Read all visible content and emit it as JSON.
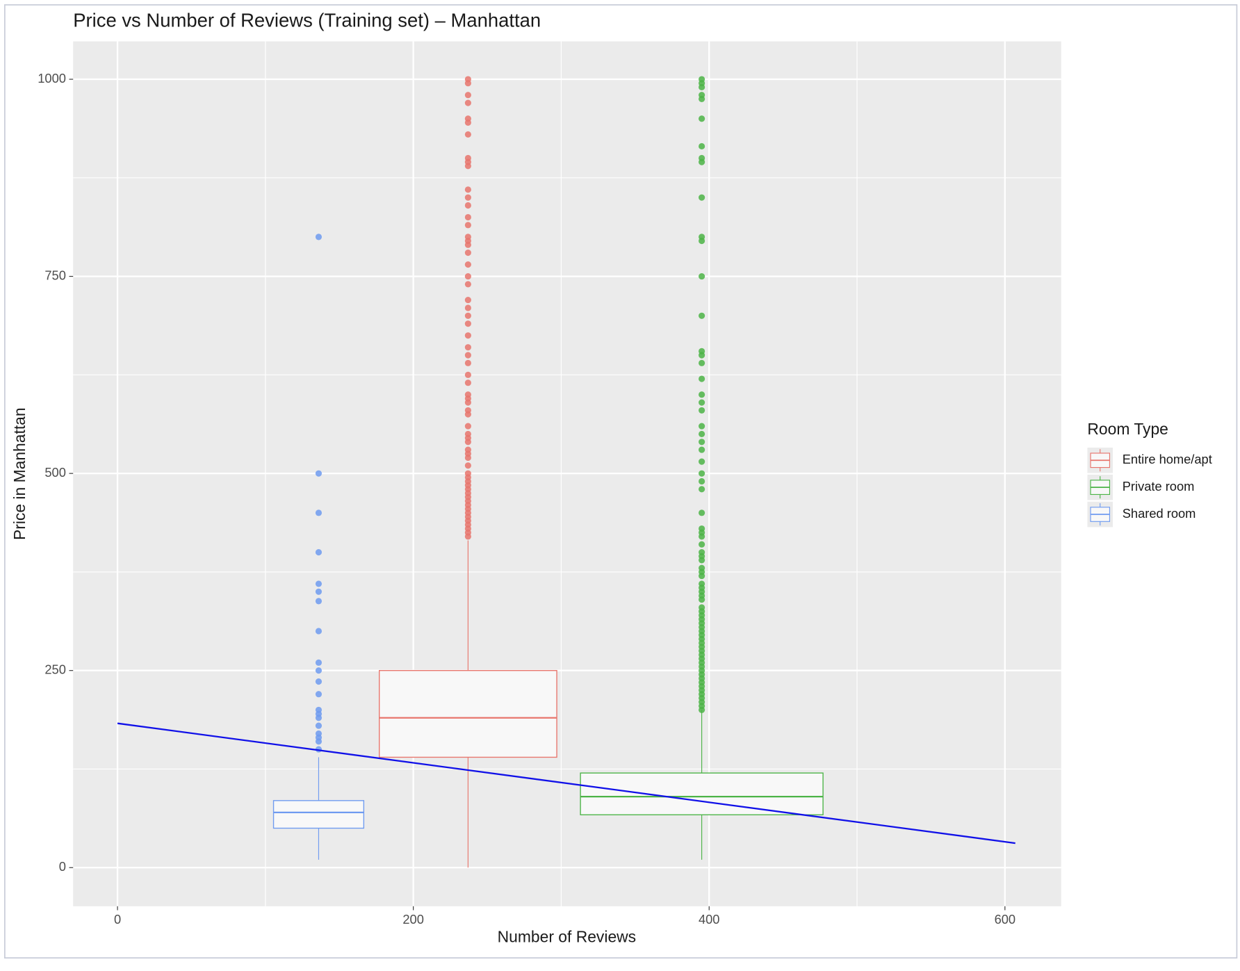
{
  "chart_data": {
    "type": "box",
    "title": "Price vs Number of Reviews (Training set) – Manhattan",
    "x_label": "Number of Reviews",
    "y_label": "Price in Manhattan",
    "legend_title": "Room Type",
    "legend_position": "right",
    "grid": true,
    "xlim": [
      -30,
      638
    ],
    "xticks": [
      0,
      200,
      400,
      600
    ],
    "ylim": [
      -49,
      1048
    ],
    "yticks": [
      0,
      250,
      500,
      750,
      1000
    ],
    "series": [
      {
        "name": "Entire home/apt",
        "color": "#e8766d",
        "x": 237,
        "width": 120,
        "q1": 140,
        "median": 190,
        "q3": 250,
        "whisker_low": 0,
        "whisker_high": 415,
        "outliers": [
          1000,
          995,
          980,
          970,
          950,
          945,
          930,
          900,
          895,
          890,
          860,
          850,
          840,
          825,
          815,
          800,
          795,
          790,
          780,
          765,
          750,
          740,
          720,
          710,
          700,
          690,
          675,
          660,
          650,
          640,
          625,
          615,
          600,
          595,
          590,
          580,
          575,
          560,
          550,
          545,
          540,
          530,
          525,
          520,
          510,
          500,
          495,
          490,
          485,
          480,
          475,
          470,
          465,
          460,
          455,
          450,
          445,
          440,
          435,
          430,
          425,
          420
        ]
      },
      {
        "name": "Private room",
        "color": "#4cb447",
        "x": 395,
        "width": 164,
        "q1": 67,
        "median": 90,
        "q3": 120,
        "whisker_low": 10,
        "whisker_high": 200,
        "outliers": [
          1000,
          995,
          990,
          980,
          975,
          950,
          915,
          900,
          895,
          850,
          800,
          795,
          750,
          700,
          655,
          650,
          640,
          620,
          600,
          590,
          580,
          560,
          550,
          540,
          530,
          515,
          500,
          490,
          480,
          450,
          430,
          425,
          420,
          410,
          400,
          395,
          390,
          380,
          375,
          370,
          360,
          355,
          350,
          345,
          340,
          330,
          325,
          320,
          315,
          310,
          305,
          300,
          295,
          290,
          285,
          280,
          275,
          270,
          265,
          260,
          255,
          250,
          245,
          240,
          235,
          230,
          225,
          220,
          215,
          210,
          205,
          200
        ]
      },
      {
        "name": "Shared room",
        "color": "#6f9bf0",
        "x": 136,
        "width": 61,
        "q1": 50,
        "median": 70,
        "q3": 85,
        "whisker_low": 10,
        "whisker_high": 140,
        "outliers": [
          800,
          500,
          450,
          400,
          360,
          350,
          338,
          300,
          260,
          250,
          236,
          220,
          200,
          195,
          190,
          180,
          170,
          165,
          160,
          150
        ]
      }
    ],
    "line": {
      "color": "#1010e8",
      "x": [
        0,
        607
      ],
      "y": [
        183,
        31
      ]
    }
  }
}
